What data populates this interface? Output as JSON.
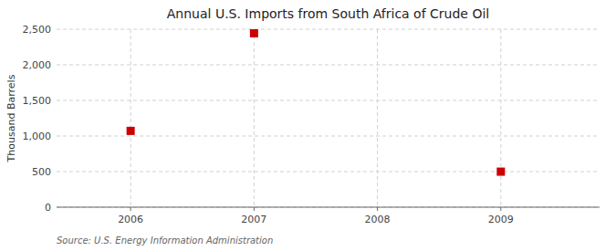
{
  "chart_data": {
    "type": "scatter",
    "title": "Annual U.S. Imports from South Africa of Crude Oil",
    "ylabel": "Thousand Barrels",
    "annotation": "Source: U.S. Energy Information Administration",
    "x": [
      2006,
      2007,
      2009
    ],
    "values": [
      1072,
      2443,
      499
    ],
    "color": "#cc0000",
    "marker": "square",
    "xlim": [
      2005.4,
      2009.8
    ],
    "ylim": [
      0,
      2500
    ],
    "xticks": [
      2006,
      2007,
      2008,
      2009
    ],
    "yticks": [
      0,
      500,
      {
        "value": 1000,
        "label": "1,000"
      },
      {
        "value": 1500,
        "label": "1,500"
      },
      {
        "value": 2000,
        "label": "2,000"
      },
      {
        "value": 2500,
        "label": "2,500"
      }
    ],
    "grid": true
  }
}
